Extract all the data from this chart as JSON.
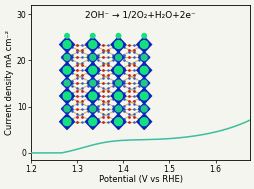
{
  "title": "2OH⁻ → 1/2O₂+H₂O+2e⁻",
  "xlabel": "Potential (V vs RHE)",
  "ylabel": "Current density mA cm⁻²",
  "xlim": [
    1.2,
    1.675
  ],
  "ylim": [
    -1.5,
    32
  ],
  "xticks": [
    1.2,
    1.3,
    1.4,
    1.5,
    1.6
  ],
  "yticks": [
    0,
    10,
    20,
    30
  ],
  "line_color": "#3bbfa0",
  "background_color": "#f5f5f0",
  "title_fontsize": 6.5,
  "axis_label_fontsize": 6.0,
  "tick_fontsize": 5.5,
  "ni_blue": "#1a2ecc",
  "ni_green": "#22cc88",
  "ligand_color": "#c8b060",
  "red_color": "#dd2222",
  "blue_small": "#2266dd"
}
